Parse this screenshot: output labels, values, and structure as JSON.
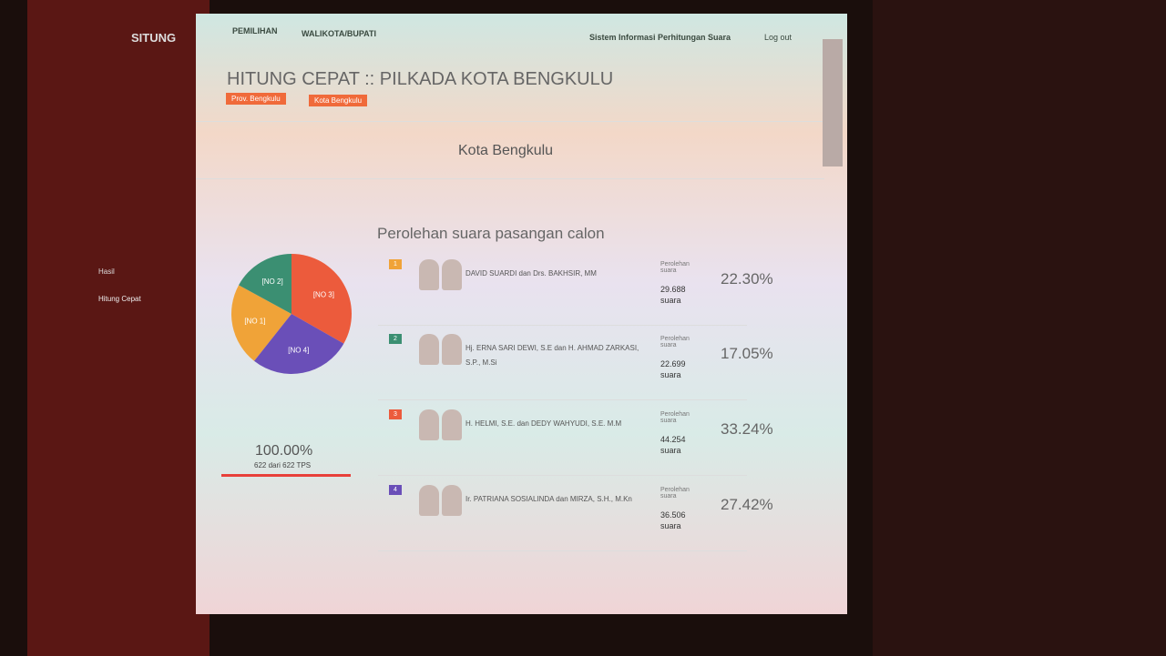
{
  "sidebar": {
    "brand": "SITUNG",
    "menu": [
      "Hasil",
      "Hitung Cepat"
    ]
  },
  "nav": {
    "items": [
      "PEMILIHAN",
      "WALIKOTA/BUPATI"
    ],
    "app_name": "Sistem Informasi Perhitungan Suara",
    "logout": "Log out"
  },
  "header": {
    "title": "HITUNG CEPAT :: PILKADA KOTA BENGKULU",
    "breadcrumbs": [
      "Prov. Bengkulu",
      "Kota Bengkulu"
    ]
  },
  "section_title": "Kota Bengkulu",
  "list_title": "Perolehan suara pasangan calon",
  "progress": {
    "percent": "100.00%",
    "detail": "622 dari 622 TPS"
  },
  "candidates": [
    {
      "number": "1",
      "name": "DAVID SUARDI dan Drs. BAKHSIR, MM",
      "votes_label": "Perolehan suara",
      "votes": "29.688",
      "unit": "suara"
    },
    {
      "number": "2",
      "name": "Hj. ERNA SARI DEWI, S.E dan H. AHMAD ZARKASI, S.P., M.Si",
      "votes_label": "Perolehan suara",
      "votes": "22.699",
      "unit": "suara"
    },
    {
      "number": "3",
      "name": "H. HELMI, S.E. dan DEDY WAHYUDI, S.E. M.M",
      "votes_label": "Perolehan suara",
      "votes": "44.254",
      "unit": "suara"
    },
    {
      "number": "4",
      "name": "Ir. PATRIANA SOSIALINDA dan MIRZA, S.H., M.Kn",
      "votes_label": "Perolehan suara",
      "votes": "36.506",
      "unit": "suara"
    }
  ],
  "chart_data": {
    "type": "pie",
    "categories": [
      "[NO 1]",
      "[NO 2]",
      "[NO 3]",
      "[NO 4]"
    ],
    "values": [
      22.3,
      17.05,
      33.24,
      27.42
    ],
    "value_labels": [
      "22.30%",
      "17.05%",
      "33.24%",
      "27.42%"
    ],
    "colors": [
      "#f0a338",
      "#3b8f72",
      "#ec5b3c",
      "#6a4fb8"
    ]
  }
}
